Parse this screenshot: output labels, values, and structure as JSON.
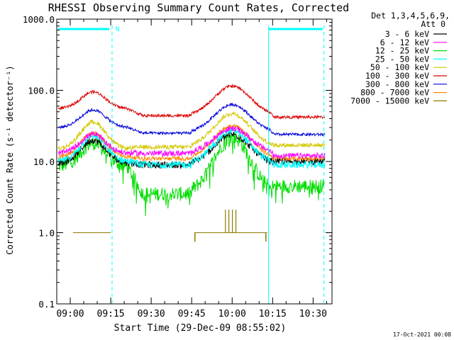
{
  "chart_data": {
    "type": "line",
    "title": "RHESSI Observing Summary Count Rates, Corrected",
    "xlabel": "Start Time (29-Dec-09 08:55:02)",
    "ylabel": "Corrected Count Rate (s⁻¹ detector⁻¹)",
    "y_scale": "log",
    "ylim": [
      0.1,
      1000
    ],
    "xlim_minutes": [
      535,
      637
    ],
    "x_tick_labels": [
      "09:00",
      "09:15",
      "09:30",
      "09:45",
      "10:00",
      "10:15",
      "10:30"
    ],
    "x_ticks_minutes": [
      540,
      555,
      570,
      585,
      600,
      615,
      630
    ],
    "y_tick_labels": [
      "0.1",
      "1.0",
      "10.0",
      "100.0",
      "1000.0"
    ],
    "y_ticks": [
      0.1,
      1,
      10,
      100,
      1000
    ],
    "legend_header": [
      "Det 1,3,4,5,6,9,",
      "Att 0"
    ],
    "legend_position": "outside-right",
    "series": [
      {
        "name": "3 - 6 keV",
        "color": "#000000",
        "quiet": 9.5,
        "peak1": 20,
        "peak2": 24,
        "trough": 9,
        "end": 10
      },
      {
        "name": "6 - 12 keV",
        "color": "#ff00ff",
        "quiet": 13,
        "peak1": 24,
        "peak2": 29,
        "trough": 13,
        "end": 12
      },
      {
        "name": "12 - 25 keV",
        "color": "#00dd00",
        "quiet": 8.5,
        "peak1": 18,
        "peak2": 22,
        "trough": 3.5,
        "end": 4.5
      },
      {
        "name": "25 - 50 keV",
        "color": "#00ffff",
        "quiet": 10,
        "peak1": 23,
        "peak2": 27,
        "trough": 9,
        "end": 9
      },
      {
        "name": "50 - 100 keV",
        "color": "#d4c800",
        "quiet": 15,
        "peak1": 36,
        "peak2": 47,
        "trough": 16,
        "end": 17
      },
      {
        "name": "100 - 300 keV",
        "color": "#dd0000",
        "quiet": 55,
        "peak1": 95,
        "peak2": 115,
        "trough": 44,
        "end": 42
      },
      {
        "name": "300 - 800 keV",
        "color": "#0000dd",
        "quiet": 30,
        "peak1": 53,
        "peak2": 63,
        "trough": 25,
        "end": 24
      },
      {
        "name": "800 - 7000 keV",
        "color": "#ff8800",
        "quiet": 11.5,
        "peak1": 25,
        "peak2": 32,
        "trough": 11,
        "end": 11
      },
      {
        "name": "7000 - 15000 keV",
        "color": "#8c7a00",
        "quiet": null,
        "peak1": null,
        "peak2": null,
        "trough": null,
        "end": null
      }
    ],
    "peaks_minutes": [
      548.5,
      600
    ],
    "trough_minutes": 574,
    "night_intervals_minutes": [
      [
        535,
        555.5
      ],
      [
        613.5,
        634
      ]
    ],
    "night_label": "N",
    "extra_text": "17-Oct-2021 00:08"
  }
}
